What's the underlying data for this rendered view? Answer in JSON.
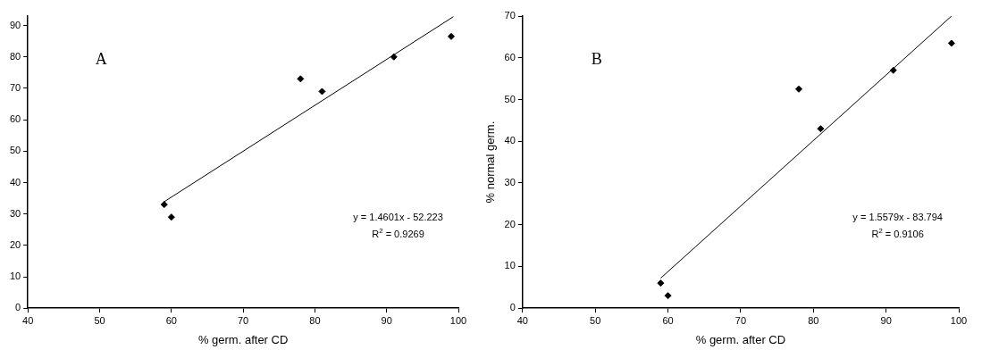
{
  "chart_data": [
    {
      "type": "scatter",
      "xlabel": "% germ. after CD",
      "xlim": [
        40,
        100
      ],
      "xticks": [
        40,
        50,
        60,
        70,
        80,
        90,
        100
      ],
      "ylim": [
        0,
        93
      ],
      "yticks": [
        0,
        10,
        20,
        30,
        40,
        50,
        60,
        70,
        80,
        90
      ],
      "grid": false,
      "legend": false,
      "annotations": [
        "A",
        "y = 1.4601x - 52.223",
        "R$^{2}$ = 0.9269"
      ],
      "series": [
        {
          "color": "#000000",
          "marker": "diamond",
          "x": [
            59,
            60,
            78,
            81,
            91,
            99
          ],
          "values": [
            33,
            29,
            73,
            69,
            80,
            86.5
          ]
        },
        {
          "type": "line",
          "marker": "none",
          "color": "#000000",
          "x": [
            59,
            99.3
          ],
          "values": [
            33.9,
            92.8
          ]
        }
      ]
    },
    {
      "type": "scatter",
      "xlabel": "% germ. after CD",
      "ylabel": "% normal germ.",
      "xlim": [
        40,
        100
      ],
      "xticks": [
        40,
        50,
        60,
        70,
        80,
        90,
        100
      ],
      "ylim": [
        0,
        70
      ],
      "yticks": [
        0,
        10,
        20,
        30,
        40,
        50,
        60,
        70
      ],
      "grid": false,
      "legend": false,
      "annotations": [
        "B",
        "y = 1.5579x - 83.794",
        "R$^{2}$ = 0.9106"
      ],
      "series": [
        {
          "color": "#000000",
          "marker": "diamond",
          "x": [
            59,
            60,
            78,
            81,
            91,
            99
          ],
          "values": [
            6,
            3,
            52.5,
            43,
            57,
            63.5
          ]
        },
        {
          "type": "line",
          "marker": "none",
          "color": "#000000",
          "x": [
            59,
            99
          ],
          "values": [
            7.2,
            70
          ]
        }
      ]
    }
  ]
}
